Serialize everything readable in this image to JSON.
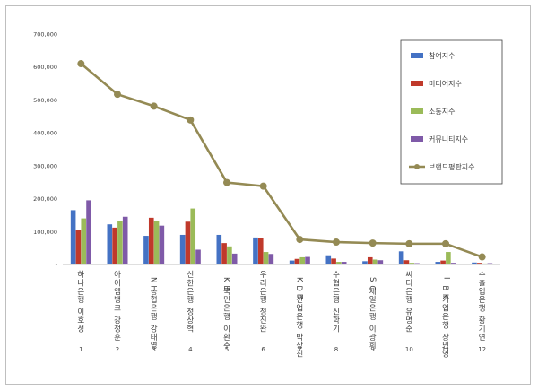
{
  "chart_data": {
    "type": "bar",
    "categories": [
      "하나은행 이호성",
      "아이엠뱅크 강정훈",
      "NH농협은행 강태영",
      "신한은행 정상혁",
      "KB국민은행 이환주",
      "우리은행 정진완",
      "KDB산업은행 박상진",
      "수협은행 신학기",
      "SC제일은행 이광희",
      "씨티은행 유명순",
      "IBK기업은행 장민영",
      "수출입은행 황기연"
    ],
    "ranks": [
      "1",
      "2",
      "3",
      "4",
      "5",
      "6",
      "7",
      "8",
      "9",
      "10",
      "11",
      "12"
    ],
    "series": [
      {
        "name": "참여지수",
        "kind": "bar",
        "color": "#4472c4",
        "values": [
          165000,
          122000,
          87000,
          90000,
          90000,
          82000,
          12000,
          28000,
          10000,
          40000,
          8000,
          6000
        ]
      },
      {
        "name": "미디어지수",
        "kind": "bar",
        "color": "#c0392b",
        "values": [
          105000,
          112000,
          142000,
          130000,
          65000,
          80000,
          17000,
          18000,
          22000,
          13000,
          12000,
          5000
        ]
      },
      {
        "name": "소통지수",
        "kind": "bar",
        "color": "#9bbb59",
        "values": [
          140000,
          133000,
          133000,
          170000,
          55000,
          38000,
          22000,
          8000,
          15000,
          5000,
          38000,
          3000
        ]
      },
      {
        "name": "커뮤니티지수",
        "kind": "bar",
        "color": "#7f5aa8",
        "values": [
          195000,
          145000,
          118000,
          45000,
          33000,
          32000,
          23000,
          8000,
          13000,
          4000,
          5000,
          4000
        ]
      },
      {
        "name": "브랜드평판지수",
        "kind": "line",
        "color": "#948a54",
        "values": [
          610000,
          517000,
          481000,
          439000,
          249000,
          238000,
          76000,
          68000,
          65000,
          63000,
          63000,
          23000
        ]
      }
    ],
    "ylim": [
      0,
      700000
    ],
    "yticks": [
      "-",
      "100,000",
      "200,000",
      "300,000",
      "400,000",
      "500,000",
      "600,000",
      "700,000"
    ],
    "grid": false,
    "legend_position": "right"
  }
}
